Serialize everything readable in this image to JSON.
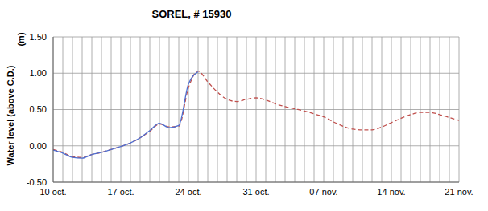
{
  "chart_data": {
    "type": "line",
    "title": "SOREL, # 15930",
    "y_label": "Water level (above C.D.)",
    "y_unit_label": "(m)",
    "categories": [
      "10 oct.",
      null,
      null,
      null,
      null,
      null,
      null,
      "17 oct.",
      null,
      null,
      null,
      null,
      null,
      null,
      "24 oct.",
      null,
      null,
      null,
      null,
      null,
      null,
      "31 oct.",
      null,
      null,
      null,
      null,
      null,
      null,
      "07 nov.",
      null,
      null,
      null,
      null,
      null,
      null,
      "14 nov.",
      null,
      null,
      null,
      null,
      null,
      null,
      "21 nov."
    ],
    "series": [
      {
        "color": "#c0504d",
        "line_style": "dashed",
        "marker": "none",
        "values": [
          -0.05,
          -0.09,
          -0.15,
          -0.16,
          -0.12,
          -0.09,
          -0.05,
          -0.01,
          0.04,
          0.11,
          0.2,
          0.3,
          0.26,
          0.27,
          0.8,
          1.03,
          0.88,
          0.74,
          0.64,
          0.61,
          0.64,
          0.66,
          0.63,
          0.58,
          0.54,
          0.51,
          0.48,
          0.44,
          0.4,
          0.33,
          0.27,
          0.23,
          0.22,
          0.22,
          0.26,
          0.32,
          0.38,
          0.43,
          0.46,
          0.46,
          0.43,
          0.39,
          0.35
        ]
      },
      {
        "color": "#4f6fd0",
        "line_style": "solid",
        "marker": "none",
        "values": [
          -0.06,
          -0.1,
          -0.16,
          -0.17,
          -0.12,
          -0.09,
          -0.05,
          -0.01,
          0.04,
          0.11,
          0.21,
          0.31,
          0.25,
          0.28,
          0.85,
          1.02,
          null,
          null,
          null,
          null,
          null,
          null,
          null,
          null,
          null,
          null,
          null,
          null,
          null,
          null,
          null,
          null,
          null,
          null,
          null,
          null,
          null,
          null,
          null,
          null,
          null,
          null,
          null
        ]
      }
    ],
    "ylim": [
      -0.5,
      1.5
    ],
    "yticks": [
      {
        "value": -0.5,
        "label": "-0.50"
      },
      {
        "value": 0,
        "label": "0.00"
      },
      {
        "value": 0.5,
        "label": "0.50"
      },
      {
        "value": 1,
        "label": "1.00"
      },
      {
        "value": 1.5,
        "label": "1.50"
      }
    ],
    "grid": true
  }
}
